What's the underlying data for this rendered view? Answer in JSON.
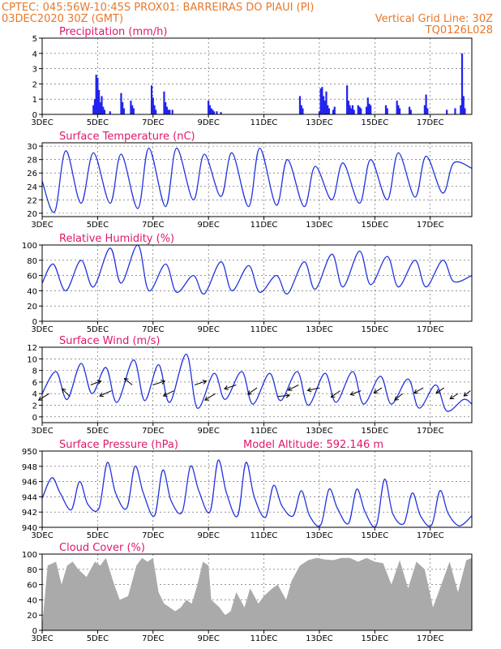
{
  "header": {
    "left_line1": "CPTEC:   045:56W-10:45S   PROX01: BARREIRAS DO PIAUI (PI)",
    "left_line2": "03DEC2020 30Z (GMT)",
    "right_line2": "Vertical Grid Line: 30Z",
    "right_line3": "TQ0126L028"
  },
  "colors": {
    "line": "#2233dd",
    "bar": "#2222ee",
    "cloud": "#aaaaaa",
    "title": "#e0176b",
    "header": "#e8782a"
  },
  "chart_data": [
    {
      "type": "bar",
      "title": "Precipitation (mm/h)",
      "ylim": [
        0,
        5
      ],
      "yticks": [
        "0",
        "1",
        "2",
        "3",
        "4",
        "5"
      ],
      "xlim": [
        3,
        18.5
      ],
      "x_tick_labels": [
        "3DEC",
        "5DEC",
        "7DEC",
        "9DEC",
        "11DEC",
        "13DEC",
        "15DEC",
        "17DEC"
      ],
      "events": [
        {
          "x": 4.85,
          "y": 0.6
        },
        {
          "x": 4.9,
          "y": 1.0
        },
        {
          "x": 4.95,
          "y": 2.6
        },
        {
          "x": 5.0,
          "y": 2.4
        },
        {
          "x": 5.05,
          "y": 1.6
        },
        {
          "x": 5.1,
          "y": 0.8
        },
        {
          "x": 5.15,
          "y": 1.2
        },
        {
          "x": 5.2,
          "y": 0.5
        },
        {
          "x": 5.25,
          "y": 0.3
        },
        {
          "x": 5.45,
          "y": 0.2
        },
        {
          "x": 5.85,
          "y": 1.4
        },
        {
          "x": 5.9,
          "y": 0.8
        },
        {
          "x": 5.95,
          "y": 0.4
        },
        {
          "x": 6.2,
          "y": 0.9
        },
        {
          "x": 6.25,
          "y": 0.6
        },
        {
          "x": 6.3,
          "y": 0.4
        },
        {
          "x": 6.95,
          "y": 1.9
        },
        {
          "x": 7.0,
          "y": 1.1
        },
        {
          "x": 7.05,
          "y": 0.6
        },
        {
          "x": 7.1,
          "y": 0.3
        },
        {
          "x": 7.4,
          "y": 1.5
        },
        {
          "x": 7.45,
          "y": 0.8
        },
        {
          "x": 7.5,
          "y": 0.5
        },
        {
          "x": 7.55,
          "y": 0.3
        },
        {
          "x": 7.6,
          "y": 0.3
        },
        {
          "x": 7.7,
          "y": 0.3
        },
        {
          "x": 9.0,
          "y": 0.9
        },
        {
          "x": 9.05,
          "y": 0.6
        },
        {
          "x": 9.1,
          "y": 0.4
        },
        {
          "x": 9.15,
          "y": 0.3
        },
        {
          "x": 9.2,
          "y": 0.2
        },
        {
          "x": 9.3,
          "y": 0.2
        },
        {
          "x": 9.45,
          "y": 0.15
        },
        {
          "x": 12.3,
          "y": 1.2
        },
        {
          "x": 12.35,
          "y": 0.6
        },
        {
          "x": 12.4,
          "y": 0.4
        },
        {
          "x": 13.0,
          "y": 0.2
        },
        {
          "x": 13.05,
          "y": 1.7
        },
        {
          "x": 13.1,
          "y": 1.8
        },
        {
          "x": 13.15,
          "y": 1.2
        },
        {
          "x": 13.2,
          "y": 0.9
        },
        {
          "x": 13.25,
          "y": 1.5
        },
        {
          "x": 13.3,
          "y": 0.6
        },
        {
          "x": 13.35,
          "y": 0.4
        },
        {
          "x": 13.5,
          "y": 0.3
        },
        {
          "x": 13.55,
          "y": 0.5
        },
        {
          "x": 14.0,
          "y": 1.9
        },
        {
          "x": 14.05,
          "y": 0.9
        },
        {
          "x": 14.1,
          "y": 0.6
        },
        {
          "x": 14.15,
          "y": 0.4
        },
        {
          "x": 14.2,
          "y": 0.6
        },
        {
          "x": 14.25,
          "y": 0.3
        },
        {
          "x": 14.4,
          "y": 0.6
        },
        {
          "x": 14.45,
          "y": 0.5
        },
        {
          "x": 14.5,
          "y": 0.4
        },
        {
          "x": 14.7,
          "y": 0.5
        },
        {
          "x": 14.75,
          "y": 1.1
        },
        {
          "x": 14.8,
          "y": 0.7
        },
        {
          "x": 14.85,
          "y": 0.6
        },
        {
          "x": 15.4,
          "y": 0.6
        },
        {
          "x": 15.45,
          "y": 0.4
        },
        {
          "x": 15.8,
          "y": 0.9
        },
        {
          "x": 15.85,
          "y": 0.6
        },
        {
          "x": 15.9,
          "y": 0.4
        },
        {
          "x": 16.25,
          "y": 0.5
        },
        {
          "x": 16.3,
          "y": 0.3
        },
        {
          "x": 16.8,
          "y": 0.6
        },
        {
          "x": 16.85,
          "y": 1.3
        },
        {
          "x": 16.9,
          "y": 0.4
        },
        {
          "x": 17.6,
          "y": 0.3
        },
        {
          "x": 17.9,
          "y": 0.4
        },
        {
          "x": 18.1,
          "y": 0.6
        },
        {
          "x": 18.15,
          "y": 4.0
        },
        {
          "x": 18.2,
          "y": 1.2
        },
        {
          "x": 18.25,
          "y": 0.4
        }
      ]
    },
    {
      "type": "line",
      "title": "Surface Temperature (nC)",
      "ylim": [
        19.5,
        30.5
      ],
      "yticks": [
        "20",
        "22",
        "24",
        "26",
        "28",
        "30"
      ],
      "xlim": [
        3,
        18.5
      ],
      "x_tick_labels": [
        "3DEC",
        "5DEC",
        "7DEC",
        "9DEC",
        "11DEC",
        "13DEC",
        "15DEC",
        "17DEC"
      ],
      "daily_min": [
        20.2,
        21.5,
        21.5,
        20.7,
        21.0,
        22.0,
        22.5,
        21.0,
        21.2,
        21.0,
        22.0,
        21.5,
        22.0,
        22.4,
        23.0
      ],
      "daily_max": [
        29.3,
        29.0,
        28.8,
        29.7,
        29.7,
        28.8,
        29.0,
        29.7,
        28.0,
        27.0,
        27.5,
        28.0,
        29.0,
        28.5,
        27.5
      ],
      "x_min": [
        3.45,
        4.4,
        5.45,
        6.45,
        7.45,
        8.45,
        9.45,
        10.45,
        11.45,
        12.45,
        13.45,
        14.45,
        15.45,
        16.45,
        17.45
      ],
      "x_max": [
        3.85,
        4.85,
        5.85,
        6.85,
        7.85,
        8.85,
        9.85,
        10.85,
        11.85,
        12.85,
        13.85,
        14.85,
        15.85,
        16.85,
        17.85
      ],
      "end_value": 26.7
    },
    {
      "type": "line",
      "title": "Relative Humidity (%)",
      "ylim": [
        0,
        100
      ],
      "yticks": [
        "0",
        "20",
        "40",
        "60",
        "80",
        "100"
      ],
      "xlim": [
        3,
        18.5
      ],
      "x_tick_labels": [
        "3DEC",
        "5DEC",
        "7DEC",
        "9DEC",
        "11DEC",
        "13DEC",
        "15DEC",
        "17DEC"
      ],
      "x": [
        3.0,
        3.4,
        3.85,
        4.4,
        4.85,
        5.45,
        5.85,
        6.45,
        6.85,
        7.45,
        7.85,
        8.45,
        8.85,
        9.45,
        9.85,
        10.45,
        10.85,
        11.45,
        11.85,
        12.45,
        12.85,
        13.45,
        13.85,
        14.45,
        14.85,
        15.45,
        15.85,
        16.45,
        16.85,
        17.45,
        17.85,
        18.5
      ],
      "y": [
        50,
        75,
        40,
        80,
        45,
        96,
        50,
        100,
        40,
        75,
        38,
        60,
        36,
        78,
        40,
        73,
        38,
        60,
        36,
        78,
        42,
        88,
        45,
        92,
        48,
        85,
        45,
        80,
        45,
        80,
        52,
        60
      ]
    },
    {
      "type": "line",
      "title": "Surface Wind (m/s)",
      "ylim": [
        -1,
        12
      ],
      "yticks": [
        "0",
        "2",
        "4",
        "6",
        "8",
        "10",
        "12"
      ],
      "xlim": [
        3,
        18.5
      ],
      "x_tick_labels": [
        "3DEC",
        "5DEC",
        "7DEC",
        "9DEC",
        "11DEC",
        "13DEC",
        "15DEC",
        "17DEC"
      ],
      "x": [
        3.0,
        3.5,
        3.9,
        4.4,
        4.8,
        5.3,
        5.7,
        6.3,
        6.7,
        7.2,
        7.6,
        8.2,
        8.6,
        9.2,
        9.6,
        10.2,
        10.6,
        11.2,
        11.6,
        12.2,
        12.6,
        13.2,
        13.6,
        14.2,
        14.6,
        15.2,
        15.6,
        16.2,
        16.6,
        17.2,
        17.6,
        18.2,
        18.5
      ],
      "y": [
        4.0,
        7.8,
        3.0,
        9.2,
        4.0,
        8.5,
        2.5,
        9.8,
        2.8,
        9.0,
        2.5,
        10.8,
        1.5,
        7.5,
        3.0,
        7.8,
        2.2,
        7.5,
        2.8,
        7.8,
        2.0,
        7.5,
        2.5,
        7.8,
        2.2,
        7.0,
        2.2,
        6.5,
        1.5,
        5.5,
        1.0,
        3.0,
        2.2
      ],
      "vectors_u": [
        -0.8,
        -0.6,
        0.8,
        -0.9,
        -0.6,
        0.9,
        -0.8,
        0.9,
        -0.8,
        -0.9,
        -0.7,
        0.9,
        -0.8,
        -0.9,
        -0.7,
        -0.8,
        -0.6,
        -0.6,
        -0.7,
        -0.6,
        -0.6,
        -0.5
      ],
      "vectors_v": [
        -0.5,
        0.6,
        0.3,
        -0.4,
        0.5,
        0.3,
        -0.4,
        0.3,
        -0.5,
        -0.3,
        -0.5,
        0.1,
        -0.4,
        -0.2,
        -0.5,
        -0.3,
        -0.4,
        -0.5,
        -0.4,
        -0.4,
        -0.4,
        -0.4
      ],
      "vectors_x": [
        3.25,
        4.0,
        4.75,
        5.5,
        6.25,
        7.0,
        7.75,
        8.5,
        9.25,
        10.0,
        10.75,
        11.5,
        12.25,
        13.0,
        13.75,
        14.5,
        15.25,
        16.0,
        16.75,
        17.5,
        18.0,
        18.45
      ],
      "vectors_y": [
        4.0,
        3.5,
        5.5,
        4.5,
        5.5,
        5.5,
        4.5,
        5.5,
        4.0,
        5.5,
        5.0,
        3.5,
        5.5,
        5.0,
        4.5,
        4.5,
        5.0,
        4.0,
        5.0,
        5.0,
        4.0,
        4.5
      ]
    },
    {
      "type": "line",
      "title": "Surface Pressure (hPa)",
      "annotation": "Model Altitude: 592.146 m",
      "ylim": [
        940,
        950
      ],
      "yticks": [
        "940",
        "942",
        "944",
        "946",
        "948",
        "950"
      ],
      "xlim": [
        3,
        18.5
      ],
      "x_tick_labels": [
        "3DEC",
        "5DEC",
        "7DEC",
        "9DEC",
        "11DEC",
        "13DEC",
        "15DEC",
        "17DEC"
      ],
      "x": [
        3.0,
        3.35,
        3.65,
        4.05,
        4.35,
        4.65,
        5.05,
        5.35,
        5.65,
        6.05,
        6.35,
        6.65,
        7.05,
        7.35,
        7.65,
        8.05,
        8.35,
        8.65,
        9.05,
        9.35,
        9.65,
        10.05,
        10.35,
        10.65,
        11.05,
        11.35,
        11.65,
        12.05,
        12.35,
        12.65,
        13.05,
        13.35,
        13.65,
        14.05,
        14.35,
        14.65,
        15.05,
        15.35,
        15.65,
        16.05,
        16.35,
        16.65,
        17.05,
        17.35,
        17.65,
        18.05,
        18.5
      ],
      "y": [
        943.8,
        946.5,
        944.5,
        942.3,
        946.0,
        943.0,
        942.5,
        948.5,
        944.5,
        942.5,
        948.0,
        944.5,
        941.5,
        947.5,
        943.5,
        942.0,
        948.0,
        944.8,
        942.0,
        948.8,
        944.5,
        941.5,
        948.5,
        944.0,
        941.3,
        945.5,
        942.8,
        941.5,
        944.8,
        941.5,
        940.3,
        945.0,
        942.5,
        940.5,
        945.0,
        942.0,
        940.2,
        946.3,
        941.8,
        940.5,
        944.5,
        941.5,
        940.3,
        944.8,
        941.8,
        940.2,
        941.5
      ]
    },
    {
      "type": "area",
      "title": "Cloud Cover (%)",
      "ylim": [
        0,
        100
      ],
      "yticks": [
        "0",
        "20",
        "40",
        "60",
        "80",
        "100"
      ],
      "xlim": [
        3,
        18.5
      ],
      "x_tick_labels": [
        "3DEC",
        "5DEC",
        "7DEC",
        "9DEC",
        "11DEC",
        "13DEC",
        "15DEC",
        "17DEC"
      ],
      "x": [
        3.0,
        3.2,
        3.5,
        3.7,
        3.9,
        4.1,
        4.3,
        4.6,
        4.9,
        5.1,
        5.3,
        5.6,
        5.8,
        6.1,
        6.4,
        6.6,
        6.8,
        7.0,
        7.2,
        7.4,
        7.6,
        7.8,
        8.0,
        8.2,
        8.4,
        8.6,
        8.8,
        9.0,
        9.1,
        9.4,
        9.6,
        9.8,
        10.0,
        10.3,
        10.5,
        10.8,
        11.0,
        11.3,
        11.5,
        11.8,
        12.0,
        12.3,
        12.6,
        12.9,
        13.2,
        13.5,
        13.8,
        14.1,
        14.4,
        14.7,
        15.0,
        15.3,
        15.6,
        15.9,
        16.2,
        16.5,
        16.8,
        17.1,
        17.4,
        17.7,
        18.0,
        18.3,
        18.5
      ],
      "y": [
        5,
        85,
        90,
        60,
        85,
        90,
        80,
        70,
        90,
        85,
        95,
        60,
        40,
        45,
        85,
        95,
        90,
        95,
        50,
        35,
        30,
        25,
        30,
        40,
        35,
        60,
        90,
        85,
        40,
        30,
        20,
        25,
        50,
        30,
        55,
        35,
        45,
        55,
        60,
        40,
        65,
        85,
        92,
        95,
        93,
        92,
        95,
        95,
        90,
        95,
        90,
        88,
        60,
        92,
        55,
        90,
        80,
        30,
        60,
        90,
        50,
        92,
        95
      ]
    }
  ]
}
